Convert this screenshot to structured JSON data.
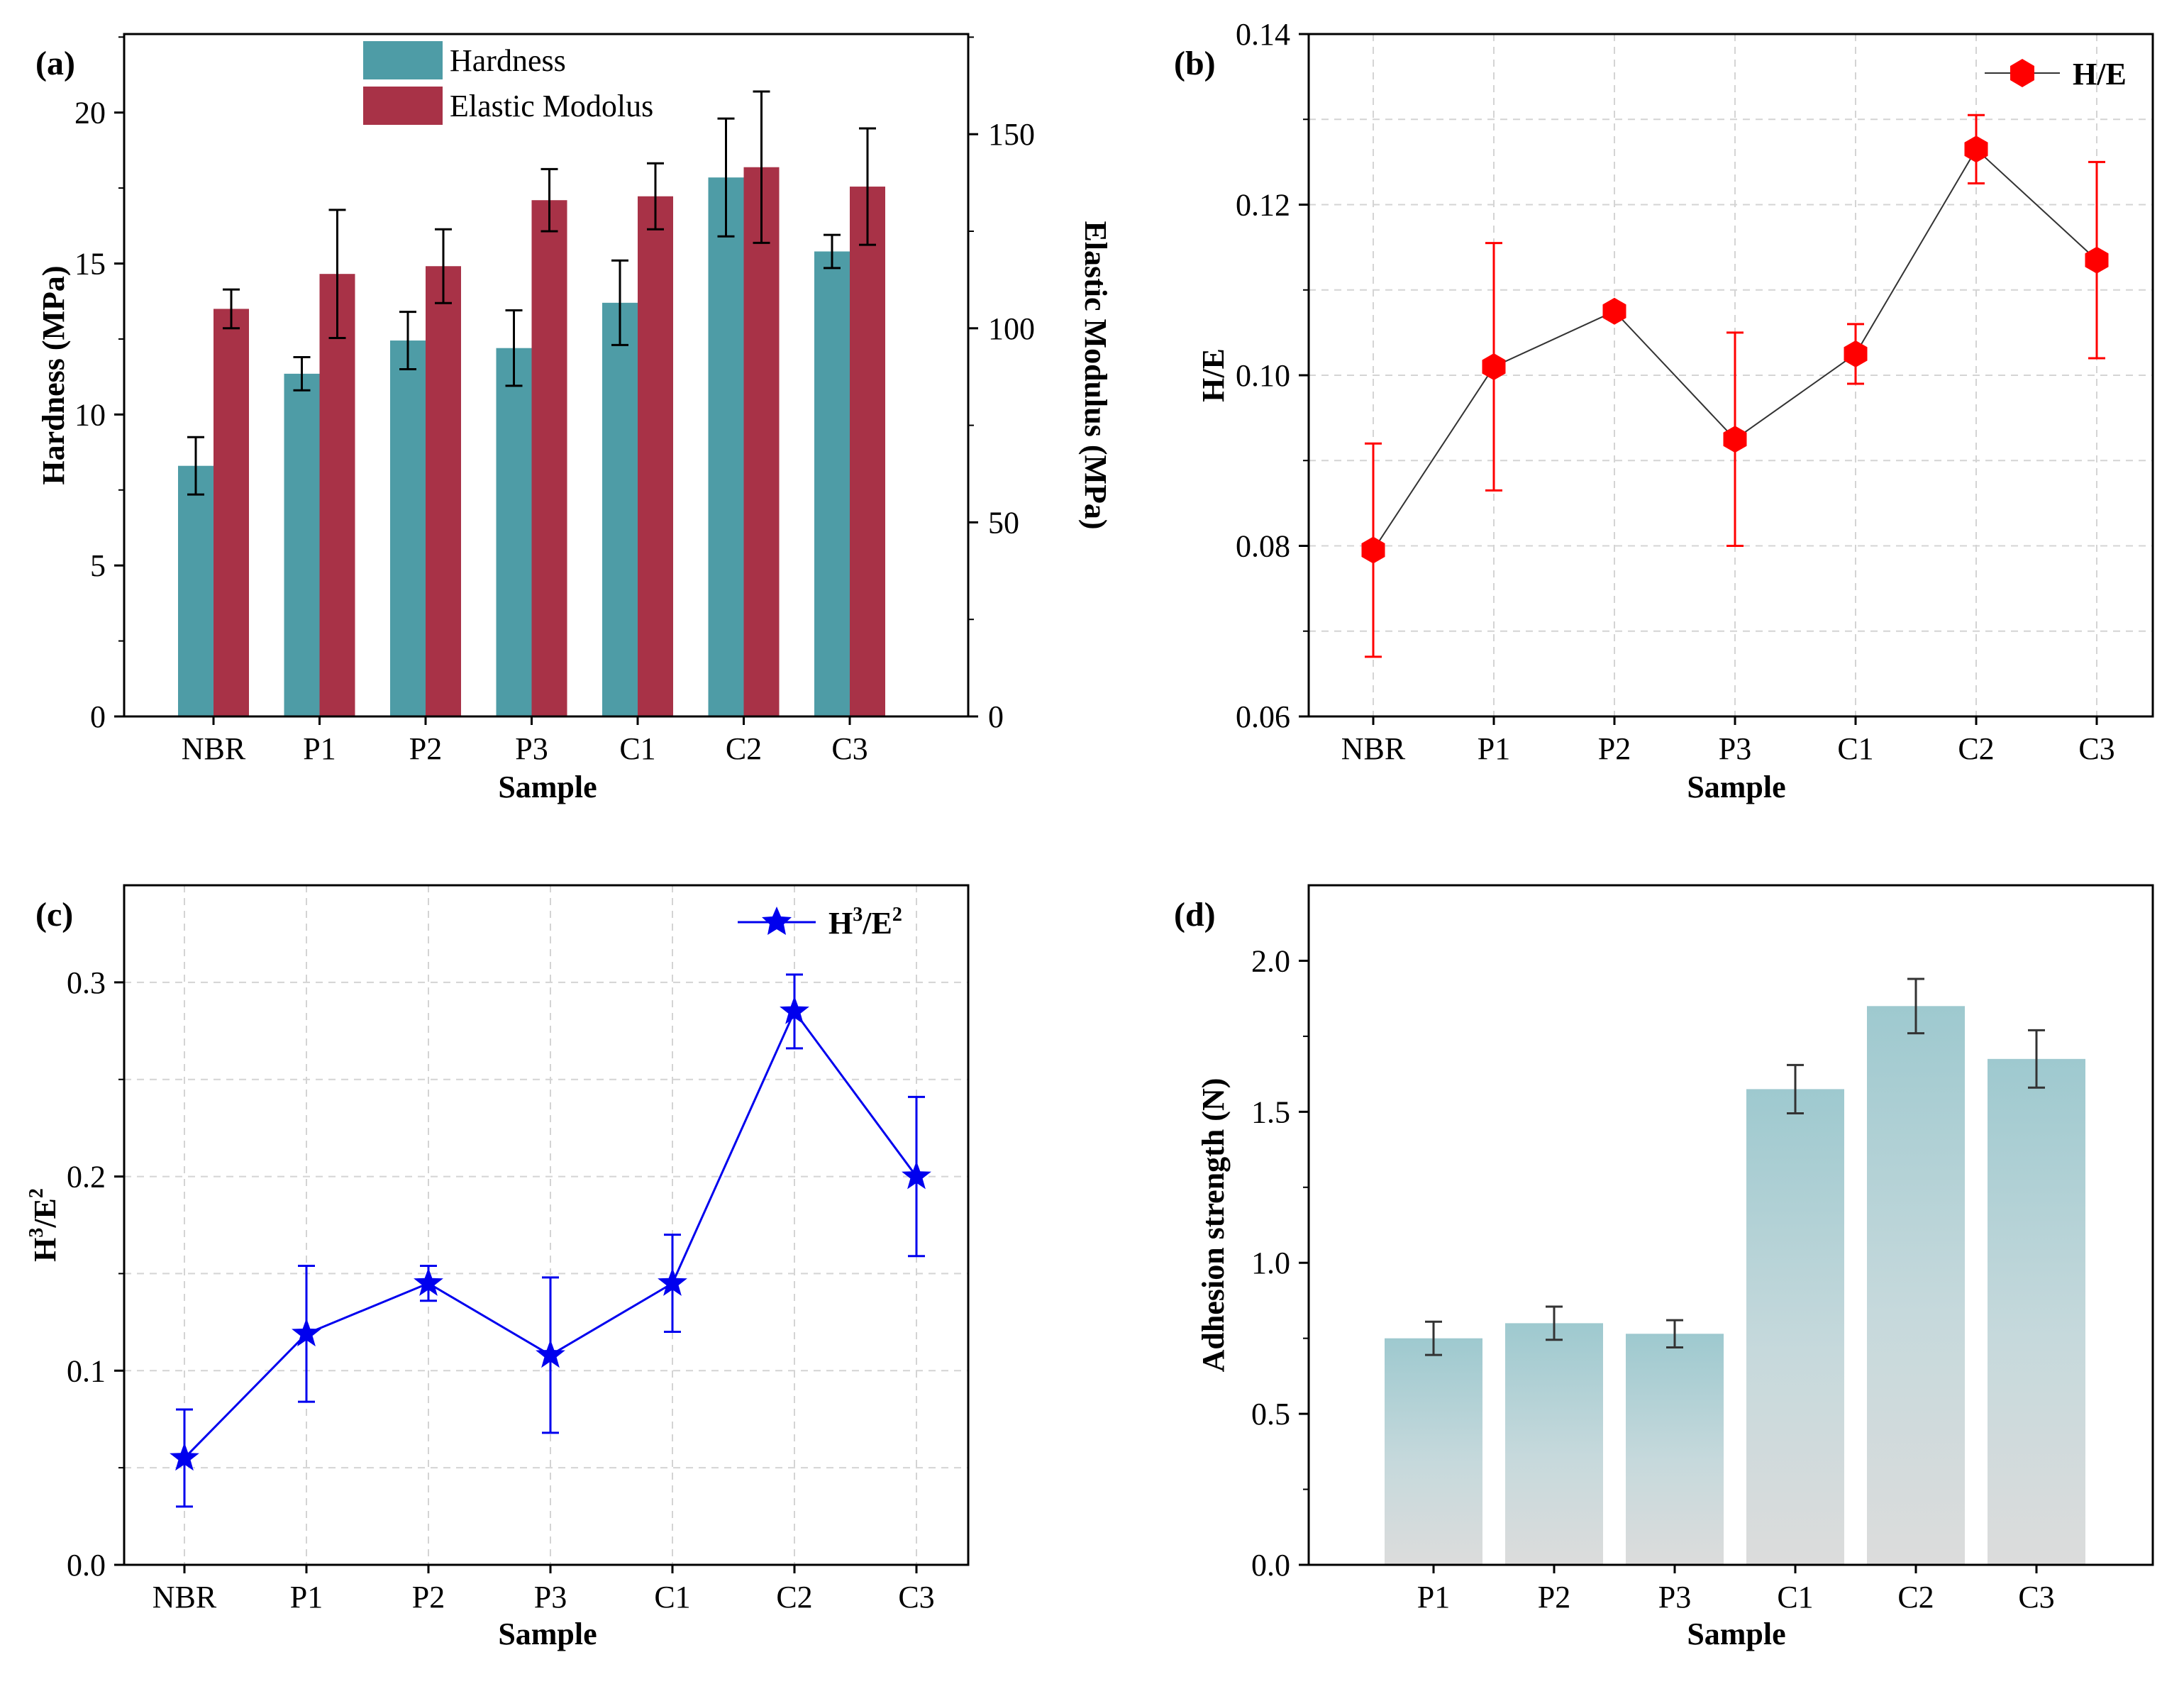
{
  "chart_data": [
    {
      "panel": "(a)",
      "type": "bar",
      "categories": [
        "NBR",
        "P1",
        "P2",
        "P3",
        "C1",
        "C2",
        "C3"
      ],
      "xlabel": "Sample",
      "ylabel": "Hardness (MPa)",
      "y2label": "Elastic Modulus (MPa)",
      "ylim": [
        0,
        22.6
      ],
      "y2lim": [
        0,
        175.8
      ],
      "yticks": [
        0,
        5,
        10,
        15,
        20
      ],
      "y2ticks": [
        0,
        50,
        100,
        150
      ],
      "legend": "top-center",
      "series": [
        {
          "name": "Hardness",
          "axis": "left",
          "color": "#4e9ca6",
          "values": [
            8.3,
            11.35,
            12.45,
            12.2,
            13.7,
            17.85,
            15.4
          ],
          "errors": [
            0.95,
            0.55,
            0.95,
            1.25,
            1.4,
            1.95,
            0.55
          ]
        },
        {
          "name": "Elastic Modolus",
          "axis": "right",
          "color": "#a83247",
          "values": [
            105,
            114,
            116,
            133,
            134,
            141.5,
            136.5
          ],
          "errors": [
            5,
            16.5,
            9.5,
            8,
            8.5,
            19.5,
            15
          ]
        }
      ]
    },
    {
      "panel": "(b)",
      "type": "line",
      "categories": [
        "NBR",
        "P1",
        "P2",
        "P3",
        "C1",
        "C2",
        "C3"
      ],
      "xlabel": "Sample",
      "ylabel": "H/E",
      "ylim": [
        0.06,
        0.14
      ],
      "yticks": [
        "0.06",
        "0.08",
        "0.10",
        "0.12",
        "0.14"
      ],
      "grid": true,
      "legend": "top-right",
      "series": [
        {
          "name": "H/E",
          "color": "#ff0000",
          "marker": "hexagon",
          "values": [
            0.0795,
            0.101,
            0.1075,
            0.0925,
            0.1025,
            0.1265,
            0.1135
          ],
          "errors": [
            0.0125,
            0.0145,
            0.0,
            0.0125,
            0.0035,
            0.004,
            0.0115
          ]
        }
      ]
    },
    {
      "panel": "(c)",
      "type": "line",
      "categories": [
        "NBR",
        "P1",
        "P2",
        "P3",
        "C1",
        "C2",
        "C3"
      ],
      "xlabel": "Sample",
      "ylabel": "H3/E2",
      "ylim": [
        0.0,
        0.35
      ],
      "yticks": [
        "0.0",
        "0.1",
        "0.2",
        "0.3"
      ],
      "grid": true,
      "legend": "top-right",
      "series": [
        {
          "name": "H3/E2",
          "color": "#0000ee",
          "marker": "star",
          "values": [
            0.055,
            0.119,
            0.145,
            0.108,
            0.145,
            0.285,
            0.2
          ],
          "errors": [
            0.025,
            0.035,
            0.009,
            0.04,
            0.025,
            0.019,
            0.041
          ]
        }
      ]
    },
    {
      "panel": "(d)",
      "type": "bar",
      "categories": [
        "P1",
        "P2",
        "P3",
        "C1",
        "C2",
        "C3"
      ],
      "xlabel": "Sample",
      "ylabel": "Adhesion strength (N)",
      "ylim": [
        0.0,
        2.25
      ],
      "yticks": [
        "0.0",
        "0.5",
        "1.0",
        "1.5",
        "2.0"
      ],
      "series": [
        {
          "name": "Adhesion strength",
          "color": "#a9ced3",
          "values": [
            0.75,
            0.8,
            0.765,
            1.575,
            1.85,
            1.675
          ],
          "errors": [
            0.055,
            0.055,
            0.045,
            0.08,
            0.09,
            0.095
          ]
        }
      ]
    }
  ]
}
